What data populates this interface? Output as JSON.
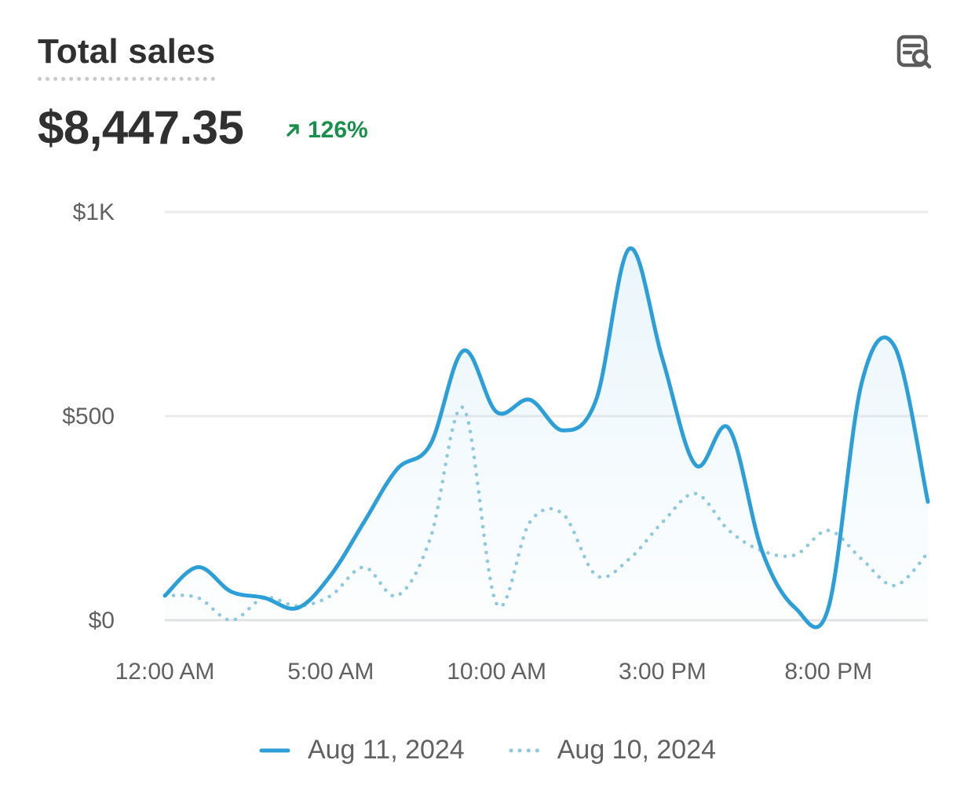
{
  "card": {
    "title": "Total sales",
    "total": "$8,447.35",
    "change": "126%",
    "explore_icon": "explore-data-icon",
    "change_icon": "arrow-up-right-icon"
  },
  "colors": {
    "primary": "#2c9fd9",
    "comparison": "#8cc8e0",
    "positive": "#1a8f4c",
    "grid": "#ebebeb"
  },
  "chart_data": {
    "type": "line",
    "title": "",
    "xlabel": "",
    "ylabel": "",
    "ylim": [
      0,
      1000
    ],
    "y_ticks": [
      "$0",
      "$500",
      "$1K"
    ],
    "y_tick_values": [
      0,
      500,
      1000
    ],
    "x_tick_labels": [
      "12:00 AM",
      "5:00 AM",
      "10:00 AM",
      "3:00 PM",
      "8:00 PM"
    ],
    "x_tick_hours": [
      0,
      5,
      10,
      15,
      20
    ],
    "x_range": [
      0,
      23
    ],
    "x": [
      0,
      1,
      2,
      3,
      4,
      5,
      6,
      7,
      8,
      9,
      10,
      11,
      12,
      13,
      14,
      15,
      16,
      17,
      18,
      19,
      20,
      21,
      22,
      23
    ],
    "series": [
      {
        "name": "Aug 11, 2024",
        "style": "solid",
        "values": [
          60,
          130,
          70,
          55,
          30,
          110,
          240,
          370,
          430,
          660,
          510,
          540,
          465,
          540,
          910,
          640,
          380,
          470,
          170,
          30,
          30,
          580,
          670,
          290
        ]
      },
      {
        "name": "Aug 10, 2024",
        "style": "dotted",
        "values": [
          60,
          55,
          0,
          55,
          35,
          60,
          130,
          60,
          200,
          520,
          40,
          240,
          260,
          110,
          150,
          240,
          310,
          220,
          170,
          160,
          220,
          150,
          85,
          165
        ]
      }
    ],
    "grid": true,
    "legend_position": "bottom"
  }
}
